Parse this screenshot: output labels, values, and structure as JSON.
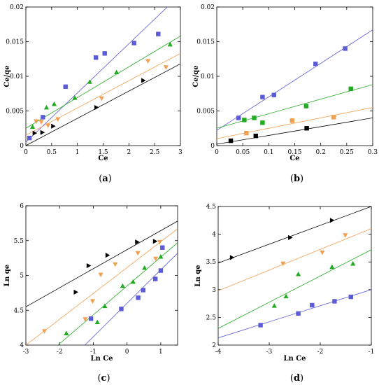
{
  "chart_data": [
    {
      "type": "scatter",
      "panel": "a",
      "caption": {
        "open": "(",
        "letter": "a",
        "close": ")"
      },
      "xlabel": "Ce",
      "ylabel": "Ce/qe",
      "xlim": [
        0,
        3
      ],
      "ylim": [
        0,
        0.02
      ],
      "xticks": [
        "0",
        "0.5",
        "1",
        "1.5",
        "2",
        "2.5",
        "3"
      ],
      "yticks": [
        "0",
        "0.005",
        "0.01",
        "0.015",
        "0.02"
      ],
      "grid": false,
      "series": [
        {
          "color": "#5b5bd6",
          "marker": "square",
          "points": [
            [
              0.07,
              0.0011
            ],
            [
              0.33,
              0.0041
            ],
            [
              0.77,
              0.0085
            ],
            [
              1.36,
              0.0127
            ],
            [
              1.53,
              0.0133
            ],
            [
              2.1,
              0.0148
            ],
            [
              2.57,
              0.0161
            ]
          ],
          "fit": [
            [
              0,
              0.0005
            ],
            [
              3,
              0.0218
            ]
          ]
        },
        {
          "color": "#22aa22",
          "marker": "triangle-up",
          "points": [
            [
              0.13,
              0.0027
            ],
            [
              0.4,
              0.0055
            ],
            [
              0.55,
              0.006
            ],
            [
              0.95,
              0.0069
            ],
            [
              1.24,
              0.0092
            ],
            [
              1.76,
              0.0106
            ],
            [
              2.8,
              0.0146
            ]
          ],
          "fit": [
            [
              0,
              0.0025
            ],
            [
              3,
              0.0158
            ]
          ]
        },
        {
          "color": "#f0a050",
          "marker": "triangle-down",
          "points": [
            [
              0.2,
              0.0035
            ],
            [
              0.3,
              0.0034
            ],
            [
              0.43,
              0.0029
            ],
            [
              0.62,
              0.0038
            ],
            [
              1.47,
              0.0068
            ],
            [
              2.37,
              0.0122
            ],
            [
              2.72,
              0.0113
            ]
          ],
          "fit": [
            [
              0,
              0.0015
            ],
            [
              3,
              0.0133
            ]
          ]
        },
        {
          "color": "#000000",
          "marker": "triangle-right",
          "points": [
            [
              0.17,
              0.0018
            ],
            [
              0.32,
              0.0019
            ],
            [
              0.53,
              0.0028
            ],
            [
              1.37,
              0.0055
            ],
            [
              2.28,
              0.0094
            ]
          ],
          "fit": [
            [
              0,
              0.0
            ],
            [
              3,
              0.0118
            ]
          ]
        }
      ]
    },
    {
      "type": "scatter",
      "panel": "b",
      "caption": {
        "open": "(",
        "letter": "b",
        "close": ")"
      },
      "xlabel": "Ce",
      "ylabel": "Ce/qe",
      "xlim": [
        0,
        0.3
      ],
      "ylim": [
        0,
        0.02
      ],
      "xticks": [
        "0",
        "0.05",
        "0.1",
        "0.15",
        "0.2",
        "0.25",
        "0.3"
      ],
      "yticks": [
        "0",
        "0.005",
        "0.01",
        "0.015",
        "0.02"
      ],
      "grid": false,
      "series": [
        {
          "color": "#5b5bd6",
          "marker": "square",
          "points": [
            [
              0.042,
              0.004
            ],
            [
              0.088,
              0.007
            ],
            [
              0.11,
              0.0073
            ],
            [
              0.19,
              0.0118
            ],
            [
              0.247,
              0.014
            ]
          ],
          "fit": [
            [
              0,
              0.0022
            ],
            [
              0.3,
              0.0167
            ]
          ]
        },
        {
          "color": "#22aa22",
          "marker": "square",
          "points": [
            [
              0.053,
              0.0037
            ],
            [
              0.072,
              0.004
            ],
            [
              0.088,
              0.0033
            ],
            [
              0.172,
              0.0057
            ],
            [
              0.258,
              0.0082
            ]
          ],
          "fit": [
            [
              0,
              0.0025
            ],
            [
              0.3,
              0.0088
            ]
          ]
        },
        {
          "color": "#f0a050",
          "marker": "square",
          "points": [
            [
              0.057,
              0.0018
            ],
            [
              0.145,
              0.0036
            ],
            [
              0.225,
              0.0041
            ]
          ],
          "fit": [
            [
              0,
              0.001
            ],
            [
              0.3,
              0.0055
            ]
          ]
        },
        {
          "color": "#000000",
          "marker": "square",
          "points": [
            [
              0.027,
              0.0007
            ],
            [
              0.075,
              0.0014
            ],
            [
              0.173,
              0.0025
            ]
          ],
          "fit": [
            [
              0,
              0.0002
            ],
            [
              0.3,
              0.004
            ]
          ]
        }
      ]
    },
    {
      "type": "scatter",
      "panel": "c",
      "caption": {
        "open": "(",
        "letter": "c",
        "close": ")"
      },
      "xlabel": "Ln Ce",
      "ylabel": "Ln qe",
      "xlim": [
        -3,
        1.5
      ],
      "ylim": [
        4,
        6
      ],
      "xticks": [
        "-3",
        "-2",
        "-1",
        "0",
        "1"
      ],
      "yticks": [
        "4",
        "4.5",
        "5",
        "5.5",
        "6"
      ],
      "grid": false,
      "series": [
        {
          "color": "#5b5bd6",
          "marker": "square",
          "points": [
            [
              -1.07,
              4.38
            ],
            [
              -0.17,
              4.52
            ],
            [
              0.33,
              4.68
            ],
            [
              0.48,
              4.79
            ],
            [
              0.84,
              4.95
            ],
            [
              1.0,
              5.07
            ],
            [
              1.05,
              5.4
            ]
          ],
          "fit": [
            [
              -1.25,
              4.0
            ],
            [
              1.5,
              5.32
            ]
          ]
        },
        {
          "color": "#22aa22",
          "marker": "triangle-up",
          "points": [
            [
              -1.8,
              4.17
            ],
            [
              -0.88,
              4.33
            ],
            [
              -0.66,
              4.56
            ],
            [
              -0.13,
              4.85
            ],
            [
              0.18,
              4.91
            ],
            [
              0.52,
              5.11
            ],
            [
              1.0,
              5.27
            ]
          ],
          "fit": [
            [
              -2.05,
              4.0
            ],
            [
              1.5,
              5.47
            ]
          ]
        },
        {
          "color": "#f0a050",
          "marker": "triangle-down",
          "points": [
            [
              -2.45,
              4.2
            ],
            [
              -1.24,
              4.37
            ],
            [
              -1.02,
              4.63
            ],
            [
              -0.78,
              5.01
            ],
            [
              -0.35,
              5.16
            ],
            [
              0.32,
              5.32
            ],
            [
              0.85,
              5.24
            ],
            [
              0.97,
              5.48
            ]
          ],
          "fit": [
            [
              -3.0,
              4.0
            ],
            [
              1.5,
              5.67
            ]
          ]
        },
        {
          "color": "#000000",
          "marker": "triangle-right",
          "points": [
            [
              -1.52,
              4.76
            ],
            [
              -1.14,
              5.14
            ],
            [
              -0.58,
              5.29
            ],
            [
              0.3,
              5.48
            ],
            [
              0.83,
              5.49
            ]
          ],
          "fit": [
            [
              -3.0,
              4.55
            ],
            [
              1.5,
              5.78
            ]
          ]
        }
      ]
    },
    {
      "type": "scatter",
      "panel": "d",
      "caption": {
        "open": "(",
        "letter": "d",
        "close": ")"
      },
      "xlabel": "Ln Ce",
      "ylabel": "Ln qe",
      "xlim": [
        -4,
        -1
      ],
      "ylim": [
        2,
        4.5
      ],
      "xticks": [
        "-4",
        "-3",
        "-2",
        "-1"
      ],
      "yticks": [
        "2",
        "2.5",
        "3",
        "3.5",
        "4",
        "4.5"
      ],
      "grid": false,
      "series": [
        {
          "color": "#5b5bd6",
          "marker": "square",
          "points": [
            [
              -3.17,
              2.36
            ],
            [
              -2.43,
              2.57
            ],
            [
              -2.16,
              2.72
            ],
            [
              -1.72,
              2.79
            ],
            [
              -1.4,
              2.87
            ]
          ],
          "fit": [
            [
              -4.0,
              2.13
            ],
            [
              -1.0,
              3.0
            ]
          ]
        },
        {
          "color": "#22aa22",
          "marker": "triangle-up",
          "points": [
            [
              -2.9,
              2.71
            ],
            [
              -2.67,
              2.88
            ],
            [
              -2.43,
              3.28
            ],
            [
              -1.77,
              3.41
            ],
            [
              -1.36,
              3.47
            ]
          ],
          "fit": [
            [
              -4.0,
              2.3
            ],
            [
              -1.0,
              3.72
            ]
          ]
        },
        {
          "color": "#f0a050",
          "marker": "triangle-down",
          "points": [
            [
              -2.73,
              3.47
            ],
            [
              -1.96,
              3.67
            ],
            [
              -1.51,
              3.98
            ]
          ],
          "fit": [
            [
              -4.0,
              2.98
            ],
            [
              -1.0,
              4.1
            ]
          ]
        },
        {
          "color": "#000000",
          "marker": "triangle-right",
          "points": [
            [
              -3.73,
              3.58
            ],
            [
              -2.59,
              3.94
            ],
            [
              -1.77,
              4.25
            ]
          ],
          "fit": [
            [
              -4.0,
              3.48
            ],
            [
              -1.0,
              4.5
            ]
          ]
        }
      ]
    }
  ]
}
